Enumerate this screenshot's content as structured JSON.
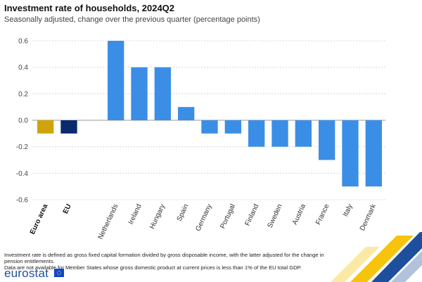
{
  "header": {
    "title": "Investment rate of households, 2024Q2",
    "subtitle": "Seasonally adjusted, change over the previous quarter (percentage points)"
  },
  "chart_data": {
    "type": "bar",
    "title": "Investment rate of households, 2024Q2",
    "subtitle": "Seasonally adjusted, change over the previous quarter (percentage points)",
    "categories": [
      "Euro area",
      "EU",
      "Netherlands",
      "Ireland",
      "Hungary",
      "Spain",
      "Germany",
      "Portugal",
      "Finland",
      "Sweden",
      "Austria",
      "France",
      "Italy",
      "Denmark"
    ],
    "values": [
      -0.1,
      -0.1,
      0.6,
      0.4,
      0.4,
      0.1,
      -0.1,
      -0.1,
      -0.2,
      -0.2,
      -0.2,
      -0.3,
      -0.5,
      -0.5
    ],
    "bold_categories": [
      "Euro area",
      "EU"
    ],
    "group_gap_after_index": 1,
    "yticks": [
      0.6,
      0.4,
      0.2,
      0.0,
      -0.2,
      -0.4,
      -0.6
    ],
    "ytick_labels": [
      "0.6",
      "0.4",
      "0.2",
      "0.0",
      "-0.2",
      "-0.4",
      "-0.6"
    ],
    "ylim": [
      -0.6,
      0.6
    ],
    "grid": "horizontal-dotted",
    "colors": {
      "Euro area": "#d1a30a",
      "EU": "#0b2a6e",
      "default": "#3b8ee6"
    }
  },
  "footnotes": {
    "line1": "Investment rate is defined as gross fixed capital formation divided by gross disposable income, with the latter adjusted for the change in pension entitlements.",
    "line2": "Data are not available for Member States whose gross domestic product at current prices is less than 1% of the EU total GDP."
  },
  "brand": {
    "logo_text": "eurostat",
    "colors": {
      "primary": "#1e4f9c",
      "accent": "#f6c000"
    }
  }
}
